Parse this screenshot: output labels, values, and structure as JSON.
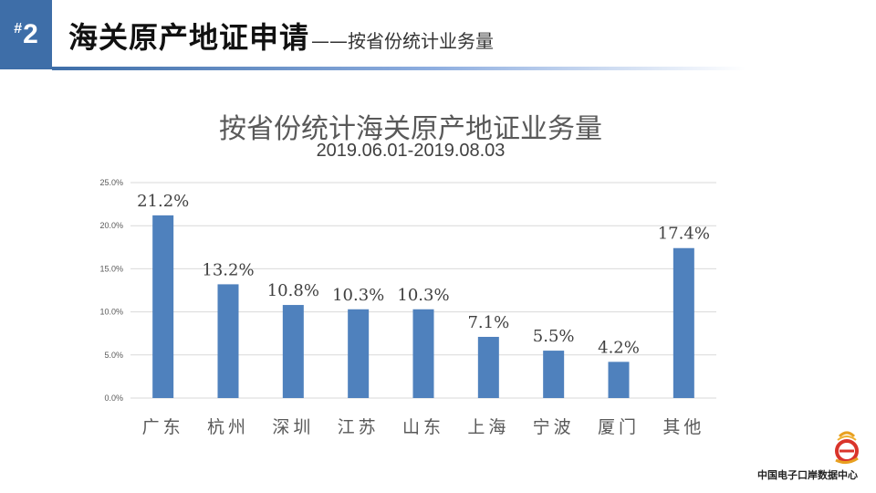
{
  "header": {
    "badge": "2",
    "badge_hash": "#",
    "title": "海关原产地证申请",
    "dash": "——",
    "subtitle": "按省份统计业务量"
  },
  "footer": {
    "text": "中国电子口岸数据中心"
  },
  "colors": {
    "accent": "#3e6ea8",
    "bar": "#4f81bd",
    "grid": "#d9d9d9"
  },
  "chart_data": {
    "type": "bar",
    "title": "按省份统计海关原产地证业务量",
    "subtitle": "2019.06.01-2019.08.03",
    "categories": [
      "广东",
      "杭州",
      "深圳",
      "江苏",
      "山东",
      "上海",
      "宁波",
      "厦门",
      "其他"
    ],
    "values": [
      21.2,
      13.2,
      10.8,
      10.3,
      10.3,
      7.1,
      5.5,
      4.2,
      17.4
    ],
    "data_labels": [
      "21.2%",
      "13.2%",
      "10.8%",
      "10.3%",
      "10.3%",
      "7.1%",
      "5.5%",
      "4.2%",
      "17.4%"
    ],
    "y_ticks": [
      0,
      5,
      10,
      15,
      20,
      25
    ],
    "y_tick_labels": [
      "0.0%",
      "5.0%",
      "10.0%",
      "15.0%",
      "20.0%",
      "25.0%"
    ],
    "ylim": [
      0,
      25
    ],
    "grid": true,
    "legend": "none"
  }
}
